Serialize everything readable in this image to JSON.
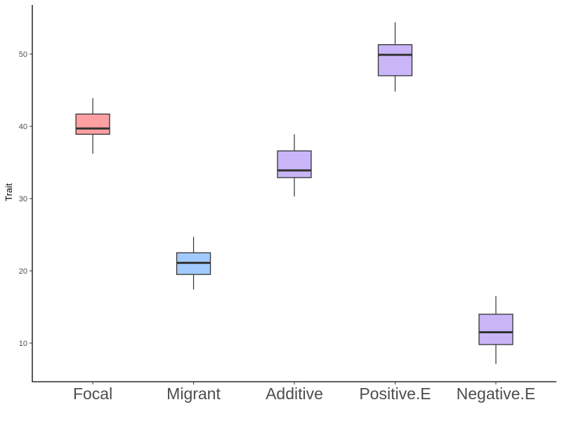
{
  "chart_data": {
    "type": "boxplot",
    "title": "",
    "xlabel": "",
    "ylabel": "Trait",
    "ylim": [
      4.66,
      56.8
    ],
    "yticks": [
      10,
      20,
      30,
      40,
      50
    ],
    "grid": false,
    "legend": "none",
    "categories": [
      "Focal",
      "Migrant",
      "Additive",
      "Positive.E",
      "Negative.E"
    ],
    "boxes": [
      {
        "category": "Focal",
        "whisker_low": 36.2,
        "q1": 38.9,
        "median": 39.7,
        "q3": 41.7,
        "whisker_high": 43.9,
        "fill": "#FFA0A3"
      },
      {
        "category": "Migrant",
        "whisker_low": 17.4,
        "q1": 19.5,
        "median": 21.1,
        "q3": 22.5,
        "whisker_high": 24.7,
        "fill": "#A3CAFF"
      },
      {
        "category": "Additive",
        "whisker_low": 30.3,
        "q1": 32.9,
        "median": 33.9,
        "q3": 36.6,
        "whisker_high": 38.9,
        "fill": "#C9B5F7"
      },
      {
        "category": "Positive.E",
        "whisker_low": 44.8,
        "q1": 47.0,
        "median": 49.9,
        "q3": 51.3,
        "whisker_high": 54.4,
        "fill": "#C9B5F7"
      },
      {
        "category": "Negative.E",
        "whisker_low": 7.1,
        "q1": 9.8,
        "median": 11.5,
        "q3": 14.0,
        "whisker_high": 16.5,
        "fill": "#C9B5F7"
      }
    ],
    "outline_color": "#333333",
    "axis_color": "#000000"
  }
}
